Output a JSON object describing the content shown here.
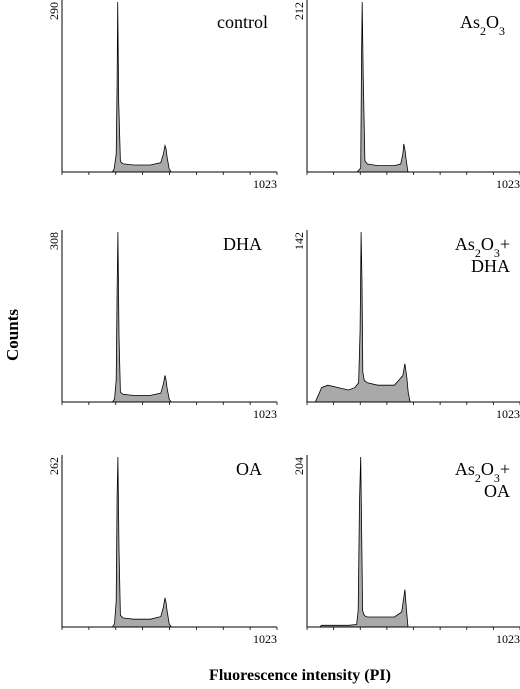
{
  "figure": {
    "ylabel": "Counts",
    "xlabel": "Fluorescence intensity (PI)",
    "fill_color": "#a9a9a9",
    "line_color": "#000000"
  },
  "chart_data": [
    {
      "type": "area",
      "label_lines": [
        "control"
      ],
      "ymax_label": "290",
      "ymax": 290,
      "xmax_label": "1023",
      "xmax": 1023,
      "x": [
        0,
        90,
        160,
        240,
        248,
        258,
        262,
        265,
        270,
        278,
        290,
        340,
        420,
        470,
        482,
        490,
        495,
        500,
        510,
        520,
        600,
        1023
      ],
      "y": [
        0,
        0,
        0,
        0,
        5,
        30,
        150,
        290,
        120,
        18,
        14,
        12,
        12,
        16,
        30,
        45,
        40,
        25,
        5,
        0,
        0,
        0
      ]
    },
    {
      "type": "area",
      "label_lines": [
        "As2O3"
      ],
      "ymax_label": "212",
      "ymax": 212,
      "xmax_label": "1023",
      "xmax": 1023,
      "x": [
        0,
        90,
        160,
        240,
        258,
        262,
        265,
        270,
        278,
        290,
        340,
        420,
        450,
        460,
        465,
        470,
        478,
        485,
        600,
        1023
      ],
      "y": [
        0,
        0,
        0,
        0,
        5,
        150,
        212,
        120,
        14,
        10,
        8,
        8,
        10,
        22,
        35,
        28,
        12,
        0,
        0,
        0
      ]
    },
    {
      "type": "area",
      "label_lines": [
        "DHA"
      ],
      "ymax_label": "308",
      "ymax": 308,
      "xmax_label": "1023",
      "xmax": 1023,
      "x": [
        0,
        90,
        160,
        240,
        250,
        258,
        262,
        266,
        271,
        278,
        290,
        340,
        420,
        470,
        482,
        490,
        495,
        500,
        510,
        520,
        600,
        1023
      ],
      "y": [
        0,
        0,
        0,
        0,
        5,
        40,
        200,
        308,
        120,
        18,
        14,
        12,
        12,
        16,
        32,
        48,
        40,
        25,
        5,
        0,
        0,
        0
      ]
    },
    {
      "type": "area",
      "label_lines": [
        "As2O3+",
        "DHA"
      ],
      "ymax_label": "142",
      "ymax": 142,
      "xmax_label": "1023",
      "xmax": 1023,
      "x": [
        0,
        40,
        55,
        70,
        100,
        150,
        200,
        230,
        248,
        255,
        260,
        264,
        268,
        275,
        290,
        340,
        420,
        460,
        470,
        480,
        486,
        495,
        600,
        1023
      ],
      "y": [
        0,
        0,
        6,
        12,
        14,
        12,
        10,
        12,
        16,
        60,
        142,
        100,
        25,
        18,
        16,
        14,
        14,
        22,
        32,
        20,
        8,
        0,
        0,
        0
      ]
    },
    {
      "type": "area",
      "label_lines": [
        "OA"
      ],
      "ymax_label": "262",
      "ymax": 262,
      "xmax_label": "1023",
      "xmax": 1023,
      "x": [
        0,
        90,
        160,
        240,
        250,
        258,
        262,
        266,
        271,
        278,
        290,
        340,
        420,
        470,
        482,
        490,
        495,
        500,
        510,
        520,
        600,
        1023
      ],
      "y": [
        0,
        0,
        0,
        0,
        5,
        40,
        200,
        262,
        120,
        18,
        14,
        12,
        12,
        16,
        30,
        45,
        38,
        25,
        5,
        0,
        0,
        0
      ]
    },
    {
      "type": "area",
      "label_lines": [
        "As2O3+",
        "OA"
      ],
      "ymax_label": "204",
      "ymax": 204,
      "xmax_label": "1023",
      "xmax": 1023,
      "x": [
        0,
        60,
        70,
        100,
        150,
        200,
        238,
        246,
        252,
        258,
        262,
        267,
        273,
        280,
        290,
        340,
        420,
        455,
        463,
        470,
        478,
        485,
        600,
        1023
      ],
      "y": [
        0,
        0,
        2,
        2,
        2,
        2,
        3,
        20,
        150,
        204,
        120,
        20,
        15,
        13,
        12,
        12,
        12,
        18,
        32,
        45,
        20,
        0,
        0,
        0
      ]
    }
  ]
}
